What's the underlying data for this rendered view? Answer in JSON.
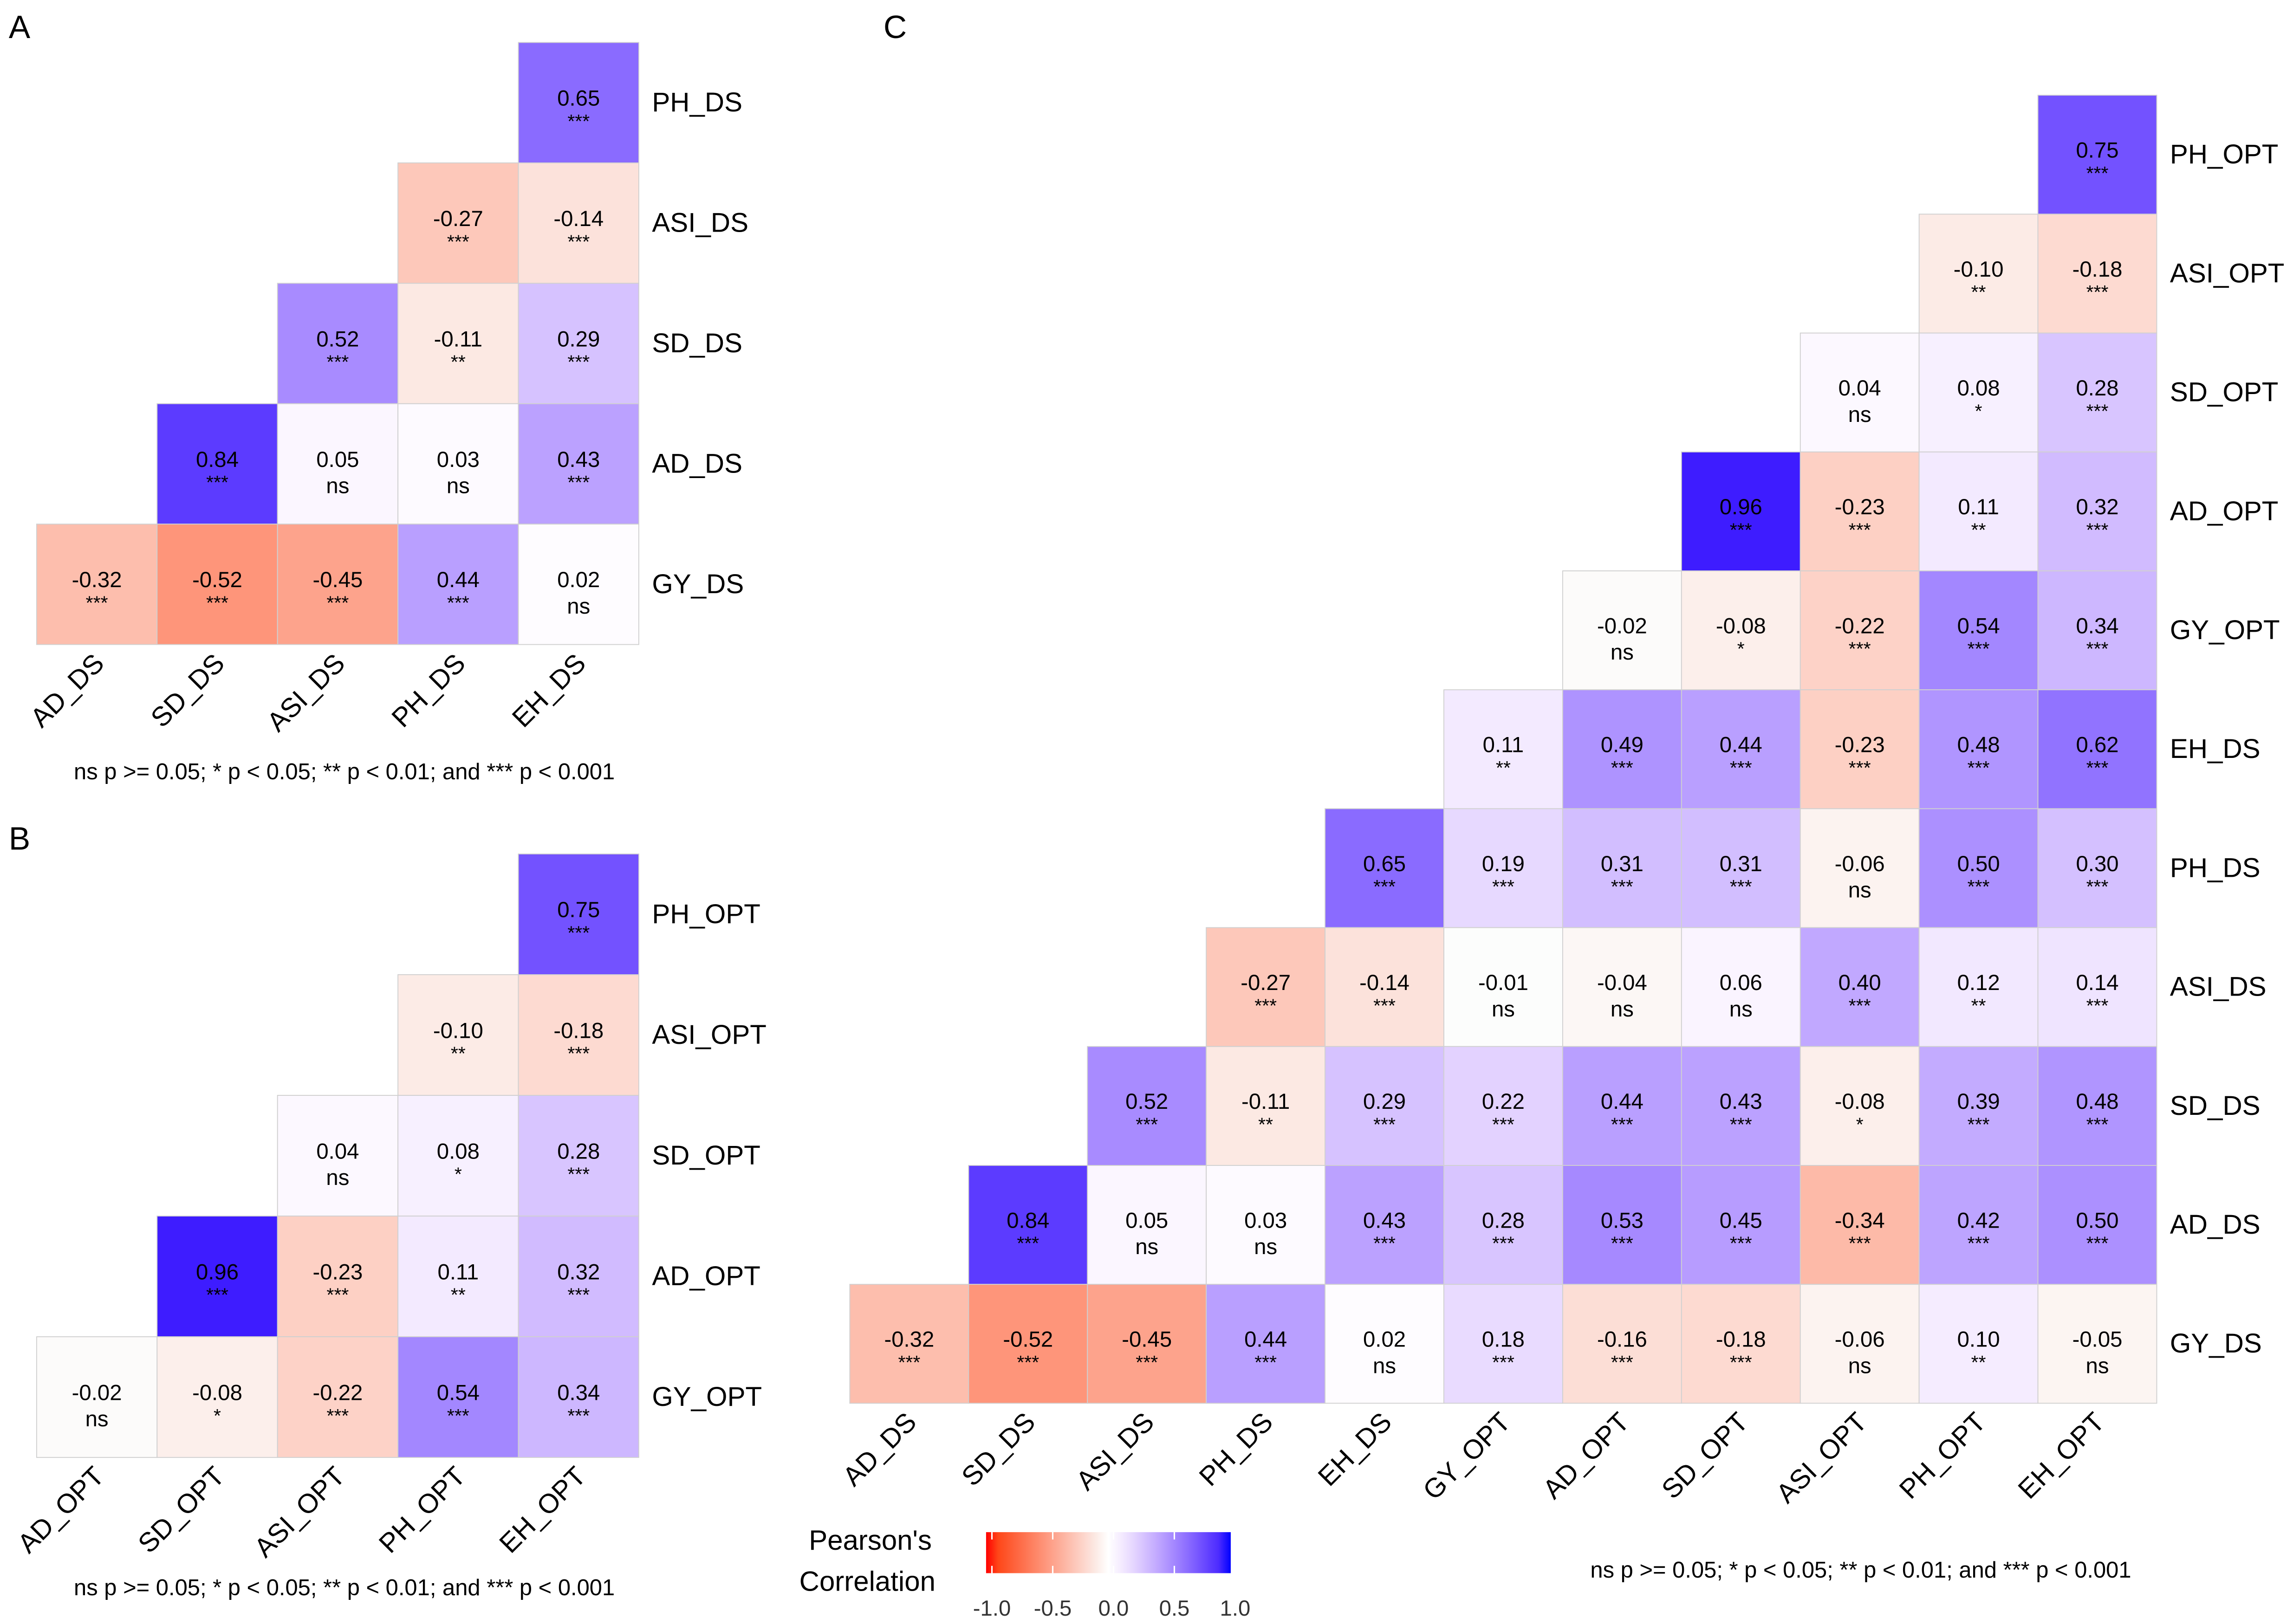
{
  "chart_data": [
    {
      "type": "heatmap",
      "panel": "A",
      "rows": [
        "PH_DS",
        "ASI_DS",
        "SD_DS",
        "AD_DS",
        "GY_DS"
      ],
      "cols": [
        "AD_DS",
        "SD_DS",
        "ASI_DS",
        "PH_DS",
        "EH_DS"
      ],
      "values": [
        [
          0.65
        ],
        [
          -0.27,
          -0.14
        ],
        [
          0.52,
          -0.11,
          0.29
        ],
        [
          0.84,
          0.05,
          0.03,
          0.43
        ],
        [
          -0.32,
          -0.52,
          -0.45,
          0.44,
          0.02
        ]
      ],
      "significance": [
        [
          "***"
        ],
        [
          "***",
          "***"
        ],
        [
          "***",
          "**",
          "***"
        ],
        [
          "***",
          "ns",
          "ns",
          "***"
        ],
        [
          "***",
          "***",
          "***",
          "***",
          "ns"
        ]
      ],
      "note": "ns p >= 0.05; * p < 0.05; ** p < 0.01; and *** p < 0.001"
    },
    {
      "type": "heatmap",
      "panel": "B",
      "rows": [
        "PH_OPT",
        "ASI_OPT",
        "SD_OPT",
        "AD_OPT",
        "GY_OPT"
      ],
      "cols": [
        "AD_OPT",
        "SD_OPT",
        "ASI_OPT",
        "PH_OPT",
        "EH_OPT"
      ],
      "values": [
        [
          0.75
        ],
        [
          -0.1,
          -0.18
        ],
        [
          0.04,
          0.08,
          0.28
        ],
        [
          0.96,
          -0.23,
          0.11,
          0.32
        ],
        [
          -0.02,
          -0.08,
          -0.22,
          0.54,
          0.34
        ]
      ],
      "significance": [
        [
          "***"
        ],
        [
          "**",
          "***"
        ],
        [
          "ns",
          "*",
          "***"
        ],
        [
          "***",
          "***",
          "**",
          "***"
        ],
        [
          "ns",
          "*",
          "***",
          "***",
          "***"
        ]
      ],
      "note": "ns p >= 0.05; * p < 0.05; ** p < 0.01; and *** p < 0.001"
    },
    {
      "type": "heatmap",
      "panel": "C",
      "rows": [
        "PH_OPT",
        "ASI_OPT",
        "SD_OPT",
        "AD_OPT",
        "GY_OPT",
        "EH_DS",
        "PH_DS",
        "ASI_DS",
        "SD_DS",
        "AD_DS",
        "GY_DS"
      ],
      "cols": [
        "AD_DS",
        "SD_DS",
        "ASI_DS",
        "PH_DS",
        "EH_DS",
        "GY_OPT",
        "AD_OPT",
        "SD_OPT",
        "ASI_OPT",
        "PH_OPT",
        "EH_OPT"
      ],
      "values": [
        [
          0.75
        ],
        [
          -0.1,
          -0.18
        ],
        [
          0.04,
          0.08,
          0.28
        ],
        [
          0.96,
          -0.23,
          0.11,
          0.32
        ],
        [
          -0.02,
          -0.08,
          -0.22,
          0.54,
          0.34
        ],
        [
          0.11,
          0.49,
          0.44,
          -0.23,
          0.48,
          0.62
        ],
        [
          0.65,
          0.19,
          0.31,
          0.31,
          -0.06,
          0.5,
          0.3
        ],
        [
          -0.27,
          -0.14,
          -0.01,
          -0.04,
          0.06,
          0.4,
          0.12,
          0.14
        ],
        [
          0.52,
          -0.11,
          0.29,
          0.22,
          0.44,
          0.43,
          -0.08,
          0.39,
          0.48
        ],
        [
          0.84,
          0.05,
          0.03,
          0.43,
          0.28,
          0.53,
          0.45,
          -0.34,
          0.42,
          0.5
        ],
        [
          -0.32,
          -0.52,
          -0.45,
          0.44,
          0.02,
          0.18,
          -0.16,
          -0.18,
          -0.06,
          0.1,
          -0.05
        ]
      ],
      "significance": [
        [
          "***"
        ],
        [
          "**",
          "***"
        ],
        [
          "ns",
          "*",
          "***"
        ],
        [
          "***",
          "***",
          "**",
          "***"
        ],
        [
          "ns",
          "*",
          "***",
          "***",
          "***"
        ],
        [
          "**",
          "***",
          "***",
          "***",
          "***",
          "***"
        ],
        [
          "***",
          "***",
          "***",
          "***",
          "ns",
          "***",
          "***"
        ],
        [
          "***",
          "***",
          "ns",
          "ns",
          "ns",
          "***",
          "**",
          "***"
        ],
        [
          "***",
          "**",
          "***",
          "***",
          "***",
          "***",
          "*",
          "***",
          "***"
        ],
        [
          "***",
          "ns",
          "ns",
          "***",
          "***",
          "***",
          "***",
          "***",
          "***",
          "***"
        ],
        [
          "***",
          "***",
          "***",
          "***",
          "ns",
          "***",
          "***",
          "***",
          "ns",
          "**",
          "ns"
        ]
      ],
      "note": "ns p >= 0.05; * p < 0.05; ** p < 0.01; and *** p < 0.001"
    }
  ],
  "legend": {
    "title_line1": "Pearson's",
    "title_line2": "Correlation",
    "ticks": [
      "-1.0",
      "-0.5",
      "0.0",
      "0.5",
      "1.0"
    ],
    "range": [
      -1,
      1
    ],
    "low_color": "#FF0000",
    "mid_color": "#FFFFFF",
    "high_color": "#0000FF"
  }
}
